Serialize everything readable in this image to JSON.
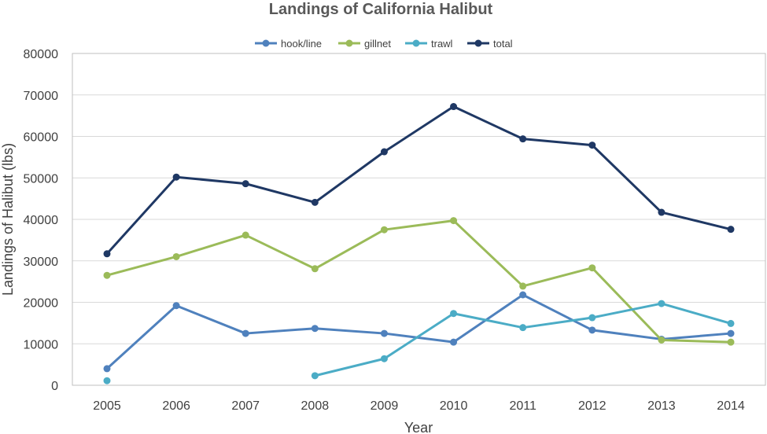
{
  "chart_data": {
    "type": "line",
    "title": "Landings of California Halibut",
    "xlabel": "Year",
    "ylabel": "Landings of Halibut (lbs)",
    "ylim": [
      0,
      80000
    ],
    "yticks": [
      0,
      10000,
      20000,
      30000,
      40000,
      50000,
      60000,
      70000,
      80000
    ],
    "x": [
      "2005",
      "2006",
      "2007",
      "2008",
      "2009",
      "2010",
      "2011",
      "2012",
      "2013",
      "2014"
    ],
    "grid": true,
    "legend_position": "top",
    "series": [
      {
        "name": "hook/line",
        "color": "#4f81bd",
        "values": [
          4000,
          19200,
          12500,
          13700,
          12500,
          10400,
          21800,
          13300,
          11100,
          12500
        ]
      },
      {
        "name": "gillnet",
        "color": "#9bbb59",
        "values": [
          26500,
          31000,
          36200,
          28100,
          37500,
          39700,
          23900,
          28300,
          10900,
          10400
        ]
      },
      {
        "name": "trawl",
        "color": "#4bacc6",
        "values": [
          1100,
          null,
          null,
          2300,
          6400,
          17300,
          13900,
          16300,
          19700,
          14900
        ]
      },
      {
        "name": "total",
        "color": "#1f3864",
        "values": [
          31700,
          50200,
          48600,
          44100,
          56300,
          67200,
          59400,
          57900,
          41700,
          37600
        ]
      }
    ]
  }
}
